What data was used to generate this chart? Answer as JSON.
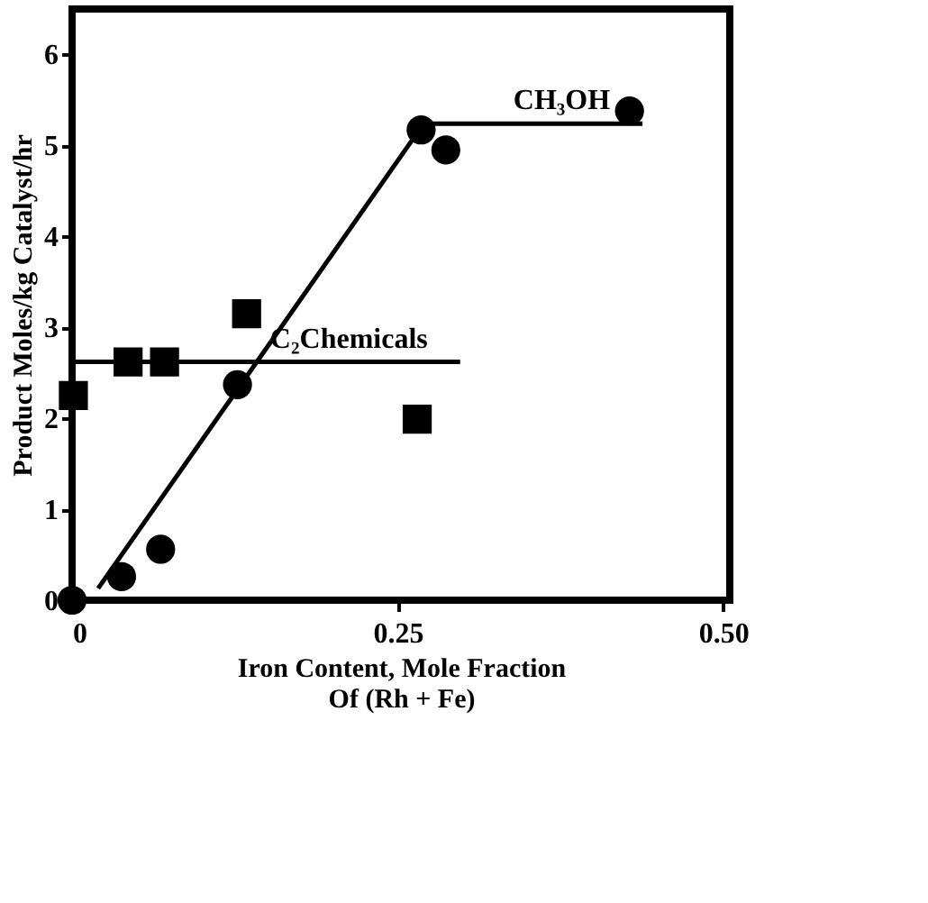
{
  "chart_data": {
    "type": "scatter",
    "xlabel": "Iron Content, Mole Fraction\nOf (Rh + Fe)",
    "ylabel": "Product Moles/kg Catalyst/hr",
    "xlim": [
      0,
      0.505
    ],
    "xticks": [
      0,
      0.25,
      {
        "value": 0.5,
        "label": "0.50"
      }
    ],
    "ylim": [
      0,
      6.5
    ],
    "yticks": [
      0,
      1,
      2,
      3,
      4,
      5,
      6
    ],
    "grid": false,
    "series": [
      {
        "name": "CH₃OH",
        "type": "line",
        "line_style": "solid",
        "color": "#000000",
        "x": [
          0.02,
          0.27,
          0.438
        ],
        "values": [
          0.13,
          5.24,
          5.24
        ]
      },
      {
        "name": "C₂Chemicals",
        "type": "line",
        "line_style": "solid",
        "color": "#000000",
        "x": [
          0,
          0.298
        ],
        "values": [
          2.62,
          2.62
        ]
      },
      {
        "type": "scatter",
        "marker": "circle",
        "color": "#000000",
        "x": [
          0,
          0.038,
          0.068,
          0.127,
          0.268,
          0.287,
          0.428
        ],
        "values": [
          0,
          0.26,
          0.56,
          2.37,
          5.17,
          4.95,
          5.38
        ]
      },
      {
        "type": "scatter",
        "marker": "square",
        "color": "#000000",
        "x": [
          0.001,
          0.043,
          0.071,
          0.134,
          0.265
        ],
        "values": [
          2.25,
          2.62,
          2.62,
          3.15,
          1.99
        ]
      }
    ]
  }
}
